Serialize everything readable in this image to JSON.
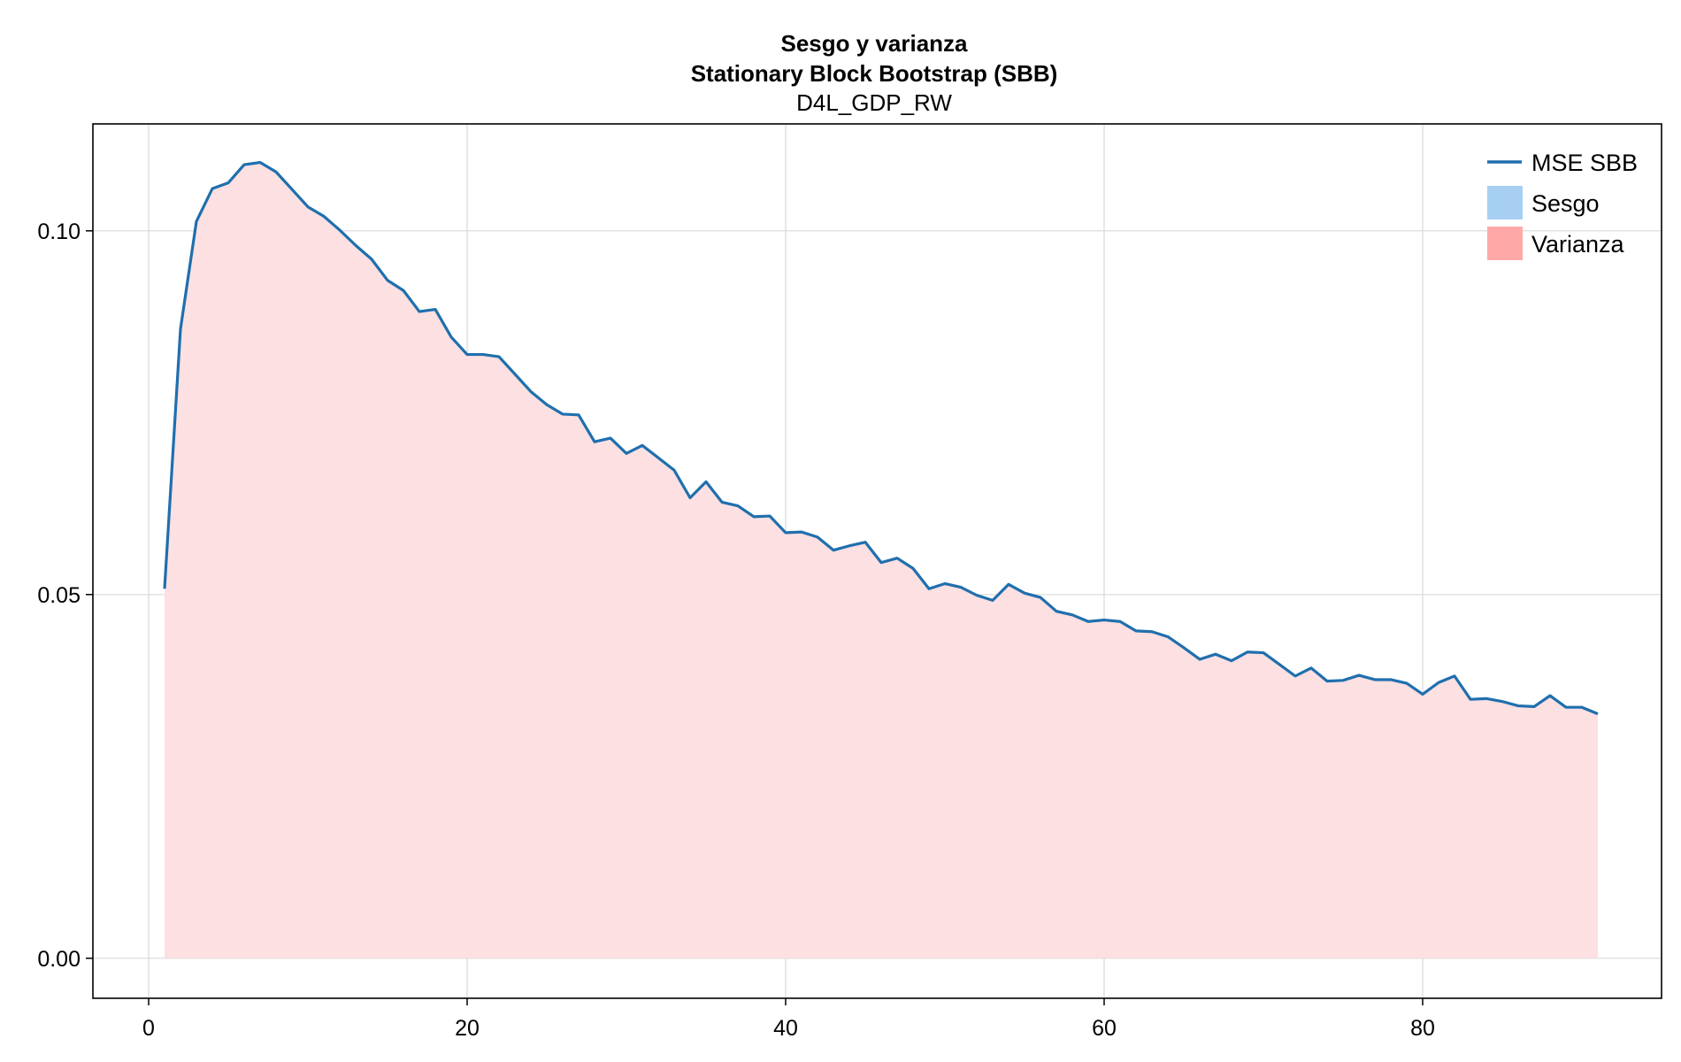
{
  "chart_data": {
    "type": "area",
    "title": "Sesgo y varianza",
    "subtitle": "Stationary Block Bootstrap (SBB)",
    "series_title": "D4L_GDP_RW",
    "xlabel": "",
    "ylabel": "",
    "xlim": [
      -3.5,
      95
    ],
    "ylim": [
      -0.0055,
      0.1147
    ],
    "x_ticks": [
      0,
      20,
      40,
      60,
      80
    ],
    "y_ticks": [
      0.0,
      0.05,
      0.1
    ],
    "x_tick_labels": [
      "0",
      "20",
      "40",
      "60",
      "80"
    ],
    "y_tick_labels": [
      "0.00",
      "0.05",
      "0.10"
    ],
    "grid": true,
    "legend_position": "top-right",
    "x": [
      1,
      2,
      3,
      4,
      5,
      6,
      7,
      8,
      9,
      10,
      11,
      12,
      13,
      14,
      15,
      16,
      17,
      18,
      19,
      20,
      21,
      22,
      23,
      24,
      25,
      26,
      27,
      28,
      29,
      30,
      31,
      32,
      33,
      34,
      35,
      36,
      37,
      38,
      39,
      40,
      41,
      42,
      43,
      44,
      45,
      46,
      47,
      48,
      49,
      50,
      51,
      52,
      53,
      54,
      55,
      56,
      57,
      58,
      59,
      60,
      61,
      62,
      63,
      64,
      65,
      66,
      67,
      68,
      69,
      70,
      71,
      72,
      73,
      74,
      75,
      76,
      77,
      78,
      79,
      80,
      81,
      82,
      83,
      84,
      85,
      86,
      87,
      88,
      89,
      90,
      91
    ],
    "series": [
      {
        "name": "MSE SBB",
        "kind": "line",
        "color": "#1f6fae",
        "values": [
          0.0508,
          0.0865,
          0.1013,
          0.1058,
          0.1066,
          0.1091,
          0.1094,
          0.1081,
          0.1057,
          0.1033,
          0.102,
          0.1001,
          0.098,
          0.0961,
          0.0932,
          0.0918,
          0.0889,
          0.0892,
          0.0854,
          0.083,
          0.083,
          0.0827,
          0.0803,
          0.0779,
          0.0761,
          0.0748,
          0.0747,
          0.071,
          0.0715,
          0.0694,
          0.0705,
          0.0688,
          0.0671,
          0.0633,
          0.0655,
          0.0627,
          0.0622,
          0.0607,
          0.0608,
          0.0585,
          0.0586,
          0.0579,
          0.0561,
          0.0567,
          0.0572,
          0.0544,
          0.055,
          0.0536,
          0.0508,
          0.0515,
          0.051,
          0.0499,
          0.0492,
          0.0514,
          0.0502,
          0.0496,
          0.0477,
          0.0472,
          0.0463,
          0.0465,
          0.0463,
          0.045,
          0.0449,
          0.0442,
          0.0427,
          0.0411,
          0.0418,
          0.0409,
          0.0421,
          0.042,
          0.0404,
          0.0388,
          0.0399,
          0.0381,
          0.0382,
          0.0389,
          0.0383,
          0.0383,
          0.0378,
          0.0363,
          0.0379,
          0.0388,
          0.0356,
          0.0357,
          0.0353,
          0.0347,
          0.0346,
          0.0361,
          0.0345,
          0.0345,
          0.0336
        ]
      },
      {
        "name": "Sesgo",
        "kind": "area",
        "color": "#a6cff2",
        "values": [
          0,
          0,
          0,
          0,
          0,
          0,
          0,
          0,
          0,
          0,
          0,
          0,
          0,
          0,
          0,
          0,
          0,
          0,
          0,
          0,
          0,
          0,
          0,
          0,
          0,
          0,
          0,
          0,
          0,
          0,
          0,
          0,
          0,
          0,
          0,
          0,
          0,
          0,
          0,
          0,
          0,
          0,
          0,
          0,
          0,
          0,
          0,
          0,
          0,
          0,
          0,
          0,
          0,
          0,
          0,
          0,
          0,
          0,
          0,
          0,
          0,
          0,
          0,
          0,
          0,
          0,
          0,
          0,
          0,
          0,
          0,
          0,
          0,
          0,
          0,
          0,
          0,
          0,
          0,
          0,
          0,
          0,
          0,
          0,
          0,
          0,
          0,
          0,
          0,
          0,
          0
        ]
      },
      {
        "name": "Varianza",
        "kind": "area",
        "color": "#ffa8a8",
        "fill_color": "#fde0e2",
        "values": [
          0.0508,
          0.0865,
          0.1013,
          0.1058,
          0.1066,
          0.1091,
          0.1094,
          0.1081,
          0.1057,
          0.1033,
          0.102,
          0.1001,
          0.098,
          0.0961,
          0.0932,
          0.0918,
          0.0889,
          0.0892,
          0.0854,
          0.083,
          0.083,
          0.0827,
          0.0803,
          0.0779,
          0.0761,
          0.0748,
          0.0747,
          0.071,
          0.0715,
          0.0694,
          0.0705,
          0.0688,
          0.0671,
          0.0633,
          0.0655,
          0.0627,
          0.0622,
          0.0607,
          0.0608,
          0.0585,
          0.0586,
          0.0579,
          0.0561,
          0.0567,
          0.0572,
          0.0544,
          0.055,
          0.0536,
          0.0508,
          0.0515,
          0.051,
          0.0499,
          0.0492,
          0.0514,
          0.0502,
          0.0496,
          0.0477,
          0.0472,
          0.0463,
          0.0465,
          0.0463,
          0.045,
          0.0449,
          0.0442,
          0.0427,
          0.0411,
          0.0418,
          0.0409,
          0.0421,
          0.042,
          0.0404,
          0.0388,
          0.0399,
          0.0381,
          0.0382,
          0.0389,
          0.0383,
          0.0383,
          0.0378,
          0.0363,
          0.0379,
          0.0388,
          0.0356,
          0.0357,
          0.0353,
          0.0347,
          0.0346,
          0.0361,
          0.0345,
          0.0345,
          0.0336
        ]
      }
    ]
  }
}
